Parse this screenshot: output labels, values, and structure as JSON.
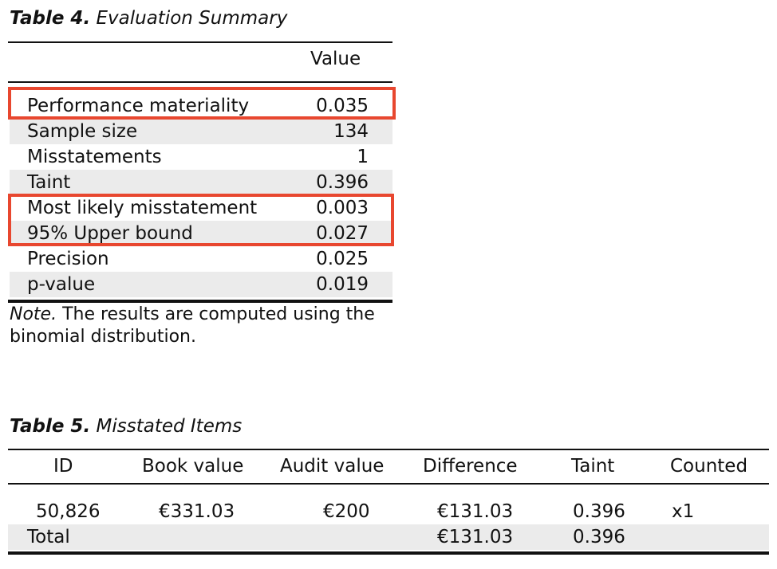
{
  "table4": {
    "caption_num": "Table 4.",
    "caption_title": "Evaluation Summary",
    "column_header": "Value",
    "rows": [
      {
        "label": "Performance materiality",
        "value": "0.035"
      },
      {
        "label": "Sample size",
        "value": "134"
      },
      {
        "label": "Misstatements",
        "value": "1"
      },
      {
        "label": "Taint",
        "value": "0.396"
      },
      {
        "label": "Most likely misstatement",
        "value": "0.003"
      },
      {
        "label": "95% Upper bound",
        "value": "0.027"
      },
      {
        "label": "Precision",
        "value": "0.025"
      },
      {
        "label": "p-value",
        "value": "0.019"
      }
    ],
    "note_label": "Note.",
    "note_text": " The results are computed using the binomial distribution."
  },
  "highlights": {
    "color": "#e8472f",
    "boxes": [
      "Performance materiality",
      "Most likely misstatement + 95% Upper bound"
    ]
  },
  "table5": {
    "caption_num": "Table 5.",
    "caption_title": "Misstated Items",
    "headers": [
      "ID",
      "Book value",
      "Audit value",
      "Difference",
      "Taint",
      "Counted"
    ],
    "rows": [
      [
        "50,826",
        "€331.03",
        "€200",
        "€131.03",
        "0.396",
        "x1"
      ]
    ],
    "total": {
      "label": "Total",
      "difference": "€131.03",
      "taint": "0.396"
    }
  }
}
